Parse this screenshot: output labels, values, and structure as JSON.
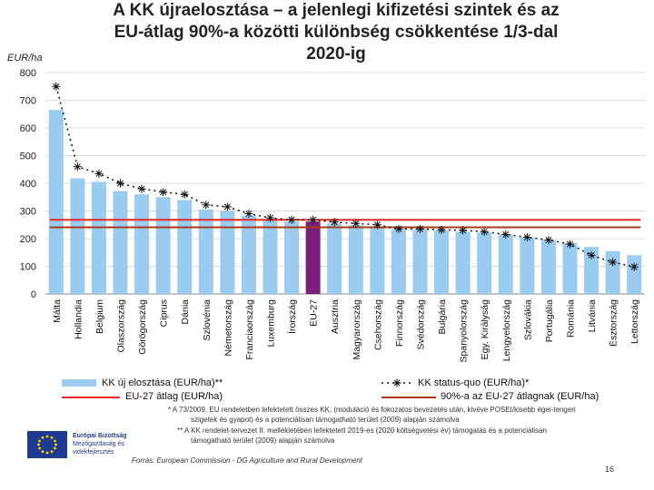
{
  "title_line1": "A KK újraelosztása – a jelenlegi kifizetési szintek és az",
  "title_line2": "EU-átlag 90%-a közötti különbség csökkentése 1/3-dal",
  "title_line3": "2020-ig",
  "footnotes": {
    "f1": "* A 73/2009. EU rendeletben lefektetett összes KK, (moduláció és fokozatos bevezetés után, kivéve POSEI/kisebb égei-tengeri",
    "f1b": "szigetek és gyapot) és a potenciálisan támogatható terület (2009) alapján számolva",
    "f2": "** A KK rendelet-tervezet II. mellékletében lefektetett 2019-es (2020 költségvetési év) támogatás és a potenciálisan",
    "f2b": "támogatható terület (2009) alapján számolva"
  },
  "source": "Forrás: European Commission - DG Agriculture and Rural Development",
  "page_number": "16",
  "eu_logo": {
    "line1": "Európai Bizottság",
    "line2": "Mezőgazdaság és",
    "line3": "vidékfejlesztés",
    "icon": "eu-flag-icon",
    "color": "#1f3a8f"
  },
  "colors": {
    "bar": "#9ccbf0",
    "bar_highlight": "#7a1f7a",
    "avg_line": "#e8282a",
    "target_line": "#a83a1a",
    "status_quo": "#111111"
  },
  "chart_data": {
    "type": "bar",
    "title": "A KK újraelosztása – a jelenlegi kifizetési szintek és az EU-átlag 90%-a közötti különbség csökkentése 1/3-dal 2020-ig",
    "ylabel": "EUR/ha",
    "ylim": [
      0,
      800
    ],
    "yticks": [
      0,
      100,
      200,
      300,
      400,
      500,
      600,
      700,
      800
    ],
    "grid": true,
    "highlight_category": "EU-27",
    "categories": [
      "Málta",
      "Hollandia",
      "Belgium",
      "Olaszország",
      "Görögország",
      "Ciprus",
      "Dánia",
      "Szlovénia",
      "Németország",
      "Franciaország",
      "Luxemburg",
      "Írország",
      "EU-27",
      "Ausztria",
      "Magyarország",
      "Csehország",
      "Finnország",
      "Svédország",
      "Bulgária",
      "Spanyolország",
      "Egy. Királyság",
      "Lengyelország",
      "Szlovákia",
      "Portugália",
      "Románia",
      "Litvánia",
      "Észtország",
      "Lettország"
    ],
    "series": [
      {
        "name": "KK új elosztása (EUR/ha)**",
        "kind": "bar",
        "values": [
          665,
          418,
          405,
          372,
          360,
          350,
          340,
          305,
          300,
          283,
          270,
          262,
          262,
          255,
          248,
          240,
          234,
          232,
          230,
          225,
          222,
          215,
          205,
          195,
          185,
          170,
          155,
          140
        ]
      },
      {
        "name": "KK status-quo (EUR/ha)*",
        "kind": "dashed-line-star",
        "values": [
          750,
          460,
          435,
          400,
          380,
          368,
          360,
          322,
          315,
          290,
          275,
          268,
          268,
          260,
          255,
          250,
          235,
          235,
          232,
          230,
          225,
          215,
          205,
          195,
          180,
          140,
          115,
          98
        ]
      },
      {
        "name": "EU-27 átlag (EUR/ha)",
        "kind": "hline",
        "value": 268
      },
      {
        "name": "90%-a az EU-27 átlagnak (EUR/ha)",
        "kind": "hline",
        "value": 241
      }
    ]
  }
}
